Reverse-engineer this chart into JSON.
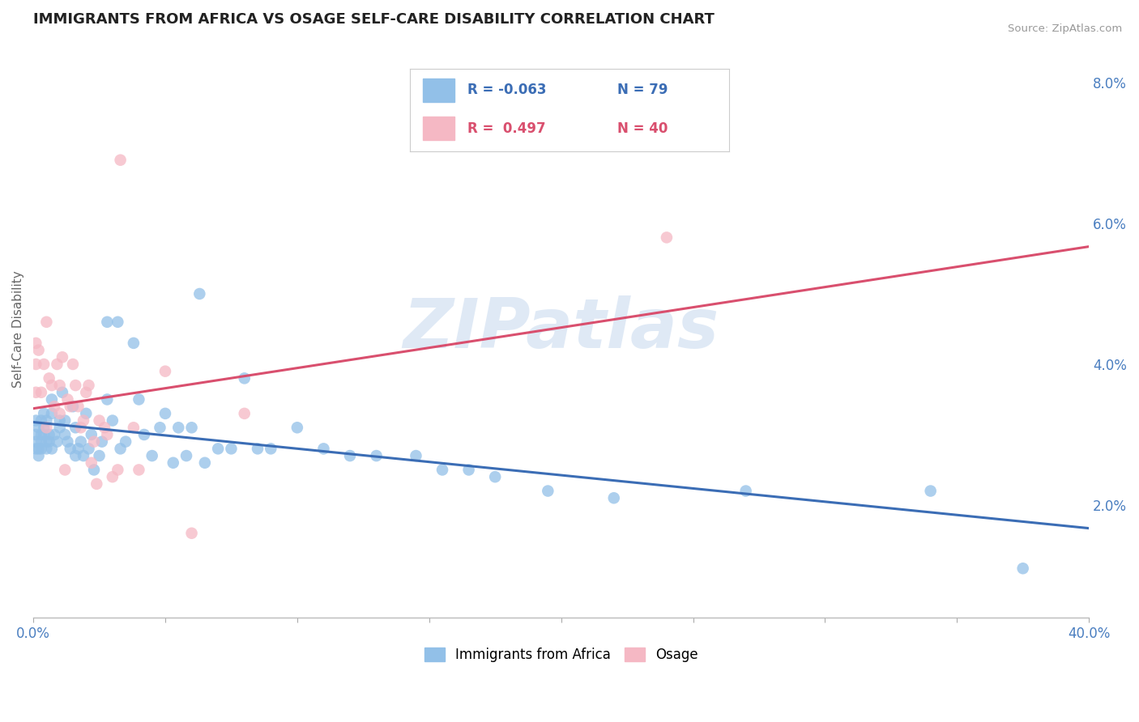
{
  "title": "IMMIGRANTS FROM AFRICA VS OSAGE SELF-CARE DISABILITY CORRELATION CHART",
  "source": "Source: ZipAtlas.com",
  "ylabel": "Self-Care Disability",
  "watermark": "ZIPatlas",
  "xlim": [
    0.0,
    0.4
  ],
  "ylim": [
    0.004,
    0.086
  ],
  "xticks": [
    0.0,
    0.05,
    0.1,
    0.15,
    0.2,
    0.25,
    0.3,
    0.35,
    0.4
  ],
  "yticks_right": [
    0.02,
    0.04,
    0.06,
    0.08
  ],
  "ytick_labels_right": [
    "2.0%",
    "4.0%",
    "6.0%",
    "8.0%"
  ],
  "R_blue": -0.063,
  "N_blue": 79,
  "R_pink": 0.497,
  "N_pink": 40,
  "blue_color": "#92C0E8",
  "pink_color": "#F5B8C4",
  "blue_line_color": "#3B6DB5",
  "pink_line_color": "#D94F6E",
  "legend_blue_label": "Immigrants from Africa",
  "legend_pink_label": "Osage",
  "background_color": "#FFFFFF",
  "grid_color": "#CCCCCC",
  "title_color": "#222222",
  "axis_label_color": "#666666",
  "right_tick_color": "#4A7EC0",
  "bottom_tick_color": "#4A7EC0",
  "blue_scatter": [
    [
      0.001,
      0.032
    ],
    [
      0.001,
      0.03
    ],
    [
      0.001,
      0.028
    ],
    [
      0.001,
      0.029
    ],
    [
      0.002,
      0.027
    ],
    [
      0.002,
      0.031
    ],
    [
      0.002,
      0.028
    ],
    [
      0.003,
      0.032
    ],
    [
      0.003,
      0.03
    ],
    [
      0.003,
      0.029
    ],
    [
      0.003,
      0.028
    ],
    [
      0.004,
      0.031
    ],
    [
      0.004,
      0.03
    ],
    [
      0.004,
      0.033
    ],
    [
      0.005,
      0.029
    ],
    [
      0.005,
      0.028
    ],
    [
      0.005,
      0.032
    ],
    [
      0.006,
      0.03
    ],
    [
      0.006,
      0.029
    ],
    [
      0.007,
      0.035
    ],
    [
      0.007,
      0.028
    ],
    [
      0.007,
      0.033
    ],
    [
      0.008,
      0.03
    ],
    [
      0.009,
      0.029
    ],
    [
      0.01,
      0.031
    ],
    [
      0.01,
      0.032
    ],
    [
      0.011,
      0.036
    ],
    [
      0.012,
      0.03
    ],
    [
      0.012,
      0.032
    ],
    [
      0.013,
      0.029
    ],
    [
      0.014,
      0.028
    ],
    [
      0.015,
      0.034
    ],
    [
      0.016,
      0.027
    ],
    [
      0.016,
      0.031
    ],
    [
      0.017,
      0.028
    ],
    [
      0.018,
      0.029
    ],
    [
      0.019,
      0.027
    ],
    [
      0.02,
      0.033
    ],
    [
      0.021,
      0.028
    ],
    [
      0.022,
      0.03
    ],
    [
      0.023,
      0.025
    ],
    [
      0.025,
      0.027
    ],
    [
      0.026,
      0.029
    ],
    [
      0.028,
      0.046
    ],
    [
      0.028,
      0.035
    ],
    [
      0.03,
      0.032
    ],
    [
      0.032,
      0.046
    ],
    [
      0.033,
      0.028
    ],
    [
      0.035,
      0.029
    ],
    [
      0.038,
      0.043
    ],
    [
      0.04,
      0.035
    ],
    [
      0.042,
      0.03
    ],
    [
      0.045,
      0.027
    ],
    [
      0.048,
      0.031
    ],
    [
      0.05,
      0.033
    ],
    [
      0.053,
      0.026
    ],
    [
      0.055,
      0.031
    ],
    [
      0.058,
      0.027
    ],
    [
      0.06,
      0.031
    ],
    [
      0.063,
      0.05
    ],
    [
      0.065,
      0.026
    ],
    [
      0.07,
      0.028
    ],
    [
      0.075,
      0.028
    ],
    [
      0.08,
      0.038
    ],
    [
      0.085,
      0.028
    ],
    [
      0.09,
      0.028
    ],
    [
      0.1,
      0.031
    ],
    [
      0.11,
      0.028
    ],
    [
      0.12,
      0.027
    ],
    [
      0.13,
      0.027
    ],
    [
      0.145,
      0.027
    ],
    [
      0.155,
      0.025
    ],
    [
      0.165,
      0.025
    ],
    [
      0.175,
      0.024
    ],
    [
      0.195,
      0.022
    ],
    [
      0.22,
      0.021
    ],
    [
      0.27,
      0.022
    ],
    [
      0.34,
      0.022
    ],
    [
      0.375,
      0.011
    ]
  ],
  "pink_scatter": [
    [
      0.001,
      0.04
    ],
    [
      0.001,
      0.036
    ],
    [
      0.001,
      0.043
    ],
    [
      0.002,
      0.042
    ],
    [
      0.003,
      0.036
    ],
    [
      0.004,
      0.04
    ],
    [
      0.005,
      0.046
    ],
    [
      0.005,
      0.031
    ],
    [
      0.006,
      0.038
    ],
    [
      0.007,
      0.037
    ],
    [
      0.008,
      0.034
    ],
    [
      0.009,
      0.04
    ],
    [
      0.01,
      0.037
    ],
    [
      0.01,
      0.033
    ],
    [
      0.011,
      0.041
    ],
    [
      0.012,
      0.025
    ],
    [
      0.013,
      0.035
    ],
    [
      0.014,
      0.034
    ],
    [
      0.015,
      0.04
    ],
    [
      0.016,
      0.037
    ],
    [
      0.017,
      0.034
    ],
    [
      0.018,
      0.031
    ],
    [
      0.019,
      0.032
    ],
    [
      0.02,
      0.036
    ],
    [
      0.021,
      0.037
    ],
    [
      0.022,
      0.026
    ],
    [
      0.023,
      0.029
    ],
    [
      0.024,
      0.023
    ],
    [
      0.025,
      0.032
    ],
    [
      0.027,
      0.031
    ],
    [
      0.028,
      0.03
    ],
    [
      0.03,
      0.024
    ],
    [
      0.032,
      0.025
    ],
    [
      0.033,
      0.069
    ],
    [
      0.038,
      0.031
    ],
    [
      0.04,
      0.025
    ],
    [
      0.05,
      0.039
    ],
    [
      0.06,
      0.016
    ],
    [
      0.08,
      0.033
    ],
    [
      0.24,
      0.058
    ]
  ]
}
